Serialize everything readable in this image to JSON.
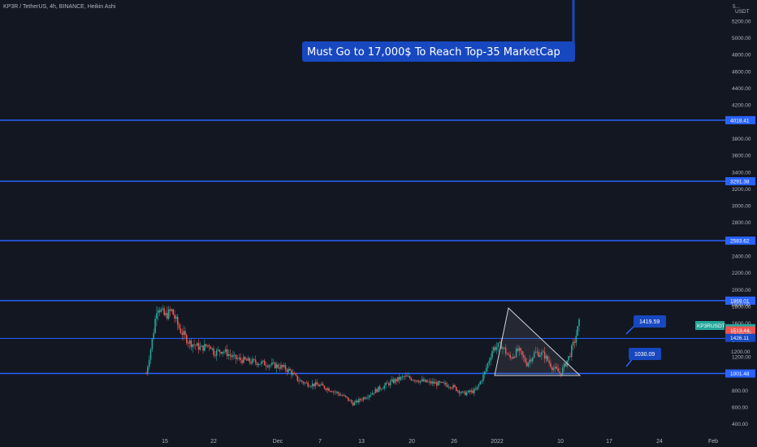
{
  "header": {
    "title": "KP3R / TetherUS, 4h, BINANCE, Heikin Ashi",
    "currency": "USDT"
  },
  "chart_data": {
    "type": "candlestick",
    "symbol": "KP3R / TetherUS",
    "timeframe": "4h",
    "exchange": "BINANCE",
    "style": "Heikin Ashi",
    "ylim": [
      300,
      5450
    ],
    "y_ticks": [
      400,
      600,
      800,
      1000,
      1200,
      1400,
      1600,
      1800,
      2000,
      2200,
      2400,
      2600,
      2800,
      3000,
      3200,
      3400,
      3600,
      3800,
      4000,
      4200,
      4400,
      4600,
      4800,
      5000,
      5200
    ],
    "x_ticks": [
      "15",
      "22",
      "Dec",
      "7",
      "13",
      "20",
      "26",
      "2022",
      "10",
      "17",
      "24",
      "Feb"
    ],
    "grid": false,
    "price_path": [
      {
        "x": 0.0,
        "y": 1000
      },
      {
        "x": 0.8,
        "y": 1450
      },
      {
        "x": 1.3,
        "y": 1820
      },
      {
        "x": 2.2,
        "y": 1680
      },
      {
        "x": 3.0,
        "y": 1750
      },
      {
        "x": 4.0,
        "y": 1520
      },
      {
        "x": 5.0,
        "y": 1380
      },
      {
        "x": 6.5,
        "y": 1300
      },
      {
        "x": 7.5,
        "y": 1350
      },
      {
        "x": 8.0,
        "y": 1250
      },
      {
        "x": 9.0,
        "y": 1280
      },
      {
        "x": 10.5,
        "y": 1180
      },
      {
        "x": 12.0,
        "y": 1150
      },
      {
        "x": 14.0,
        "y": 1120
      },
      {
        "x": 16.0,
        "y": 1080
      },
      {
        "x": 17.0,
        "y": 1030
      },
      {
        "x": 18.0,
        "y": 920
      },
      {
        "x": 19.0,
        "y": 880
      },
      {
        "x": 20.5,
        "y": 860
      },
      {
        "x": 22.0,
        "y": 800
      },
      {
        "x": 23.5,
        "y": 720
      },
      {
        "x": 24.5,
        "y": 640
      },
      {
        "x": 25.5,
        "y": 700
      },
      {
        "x": 26.5,
        "y": 760
      },
      {
        "x": 27.5,
        "y": 820
      },
      {
        "x": 29.0,
        "y": 900
      },
      {
        "x": 30.5,
        "y": 960
      },
      {
        "x": 31.5,
        "y": 940
      },
      {
        "x": 33.0,
        "y": 900
      },
      {
        "x": 34.5,
        "y": 880
      },
      {
        "x": 36.0,
        "y": 860
      },
      {
        "x": 37.5,
        "y": 760
      },
      {
        "x": 39.0,
        "y": 800
      },
      {
        "x": 40.0,
        "y": 1000
      },
      {
        "x": 41.0,
        "y": 1300
      },
      {
        "x": 42.0,
        "y": 1340
      },
      {
        "x": 43.0,
        "y": 1180
      },
      {
        "x": 44.0,
        "y": 1280
      },
      {
        "x": 45.0,
        "y": 1120
      },
      {
        "x": 46.0,
        "y": 1250
      },
      {
        "x": 47.0,
        "y": 1230
      },
      {
        "x": 48.0,
        "y": 1080
      },
      {
        "x": 49.0,
        "y": 1000
      },
      {
        "x": 50.0,
        "y": 1200
      },
      {
        "x": 50.7,
        "y": 1400
      },
      {
        "x": 51.2,
        "y": 1600
      }
    ],
    "horizontal_levels": [
      {
        "value": 4018.41,
        "label": "4018.41"
      },
      {
        "value": 3291.38,
        "label": "3291.38"
      },
      {
        "value": 2583.62,
        "label": "2583.62"
      },
      {
        "value": 1869.01,
        "label": "1869.01"
      },
      {
        "value": 1001.48,
        "label": "1001.48"
      }
    ],
    "price_labels": [
      {
        "value": 1541.21,
        "label": "1541.21"
      },
      {
        "value": 1513.44,
        "label": "1513.44"
      },
      {
        "value": 1426.11,
        "label": "1426.11"
      }
    ],
    "annotations": {
      "banner": "Must Go to 17,000$ To Reach Top-35 MarketCap",
      "callout_upper": "1419.59",
      "callout_lower": "1030.09",
      "symbol_tag": "KP3RUSDT",
      "partial_top_label": "5...",
      "partial_label_a": "1800.00",
      "partial_label_b": "01:12:36",
      "partial_label_c": "1200.00"
    },
    "triangle": {
      "apex_price": 1720,
      "left_price": 920,
      "right_price": 890
    },
    "colors": {
      "level_line": "#2962ff",
      "up": "#26a69a",
      "down": "#ef5350",
      "banner_bg": "#1848c0",
      "tag_bg": "#26a69a",
      "price_tag_bg": "#ef5350"
    }
  }
}
